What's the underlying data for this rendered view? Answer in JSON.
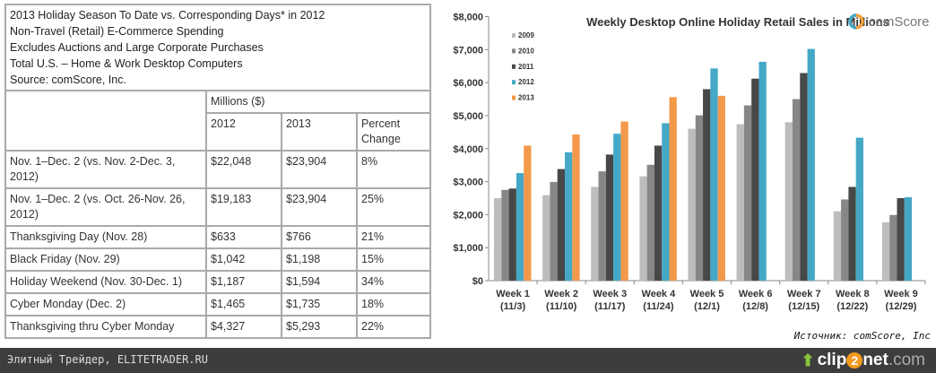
{
  "table": {
    "header_lines": [
      "2013 Holiday Season To Date vs. Corresponding Days* in 2012",
      "Non-Travel (Retail) E-Commerce Spending",
      "Excludes Auctions and Large Corporate Purchases",
      "Total U.S. – Home & Work Desktop Computers",
      "Source: comScore, Inc."
    ],
    "group_header": "Millions ($)",
    "columns": [
      "2012",
      "2013",
      "Percent Change"
    ],
    "rows": [
      {
        "label": "Nov. 1–Dec. 2 (vs. Nov. 2-Dec. 3, 2012)",
        "v2012": "$22,048",
        "v2013": "$23,904",
        "pct": "8%"
      },
      {
        "label": "Nov. 1–Dec. 2 (vs. Oct. 26-Nov. 26, 2012)",
        "v2012": "$19,183",
        "v2013": "$23,904",
        "pct": "25%"
      },
      {
        "label": "Thanksgiving Day (Nov. 28)",
        "v2012": "$633",
        "v2013": "$766",
        "pct": "21%"
      },
      {
        "label": "Black Friday (Nov. 29)",
        "v2012": "$1,042",
        "v2013": "$1,198",
        "pct": "15%"
      },
      {
        "label": "Holiday Weekend (Nov. 30-Dec. 1)",
        "v2012": "$1,187",
        "v2013": "$1,594",
        "pct": "34%"
      },
      {
        "label": "Cyber Monday (Dec. 2)",
        "v2012": "$1,465",
        "v2013": "$1,735",
        "pct": "18%"
      },
      {
        "label": "Thanksgiving thru Cyber Monday",
        "v2012": "$4,327",
        "v2013": "$5,293",
        "pct": "22%"
      }
    ]
  },
  "chart_data": {
    "type": "bar",
    "title": "Weekly Desktop Online Holiday Retail Sales in Millions",
    "brand": "comScore",
    "categories": [
      [
        "Week 1",
        "(11/3)"
      ],
      [
        "Week 2",
        "(11/10)"
      ],
      [
        "Week 3",
        "(11/17)"
      ],
      [
        "Week 4",
        "(11/24)"
      ],
      [
        "Week 5",
        "(12/1)"
      ],
      [
        "Week 6",
        "(12/8)"
      ],
      [
        "Week 7",
        "(12/15)"
      ],
      [
        "Week 8",
        "(12/22)"
      ],
      [
        "Week 9",
        "(12/29)"
      ]
    ],
    "ylim": [
      0,
      8000
    ],
    "yticks": [
      "$0",
      "$1,000",
      "$2,000",
      "$3,000",
      "$4,000",
      "$5,000",
      "$6,000",
      "$7,000",
      "$8,000"
    ],
    "legend_position": "top-left",
    "grid": false,
    "series": [
      {
        "name": "2009",
        "color": "#bdbdbd",
        "values": [
          2500,
          2590,
          2840,
          3160,
          4600,
          4740,
          4800,
          2100,
          1770
        ]
      },
      {
        "name": "2010",
        "color": "#878787",
        "values": [
          2750,
          2990,
          3310,
          3510,
          5010,
          5310,
          5500,
          2460,
          1990
        ]
      },
      {
        "name": "2011",
        "color": "#484848",
        "values": [
          2790,
          3380,
          3820,
          4090,
          5800,
          6120,
          6290,
          2840,
          2500
        ]
      },
      {
        "name": "2012",
        "color": "#45a8c7",
        "values": [
          3260,
          3890,
          4450,
          4770,
          6430,
          6630,
          7020,
          4330,
          2530
        ]
      },
      {
        "name": "2013",
        "color": "#f3994a",
        "values": [
          4090,
          4430,
          4820,
          5560,
          5600,
          null,
          null,
          null,
          null
        ]
      }
    ]
  },
  "source_note": "Источник: comScore, Inc",
  "footer": {
    "site": "Элитный Трейдер, ELITETRADER.RU",
    "logo_a": "clip",
    "logo_2": "2",
    "logo_b": "net",
    "logo_c": ".com"
  }
}
